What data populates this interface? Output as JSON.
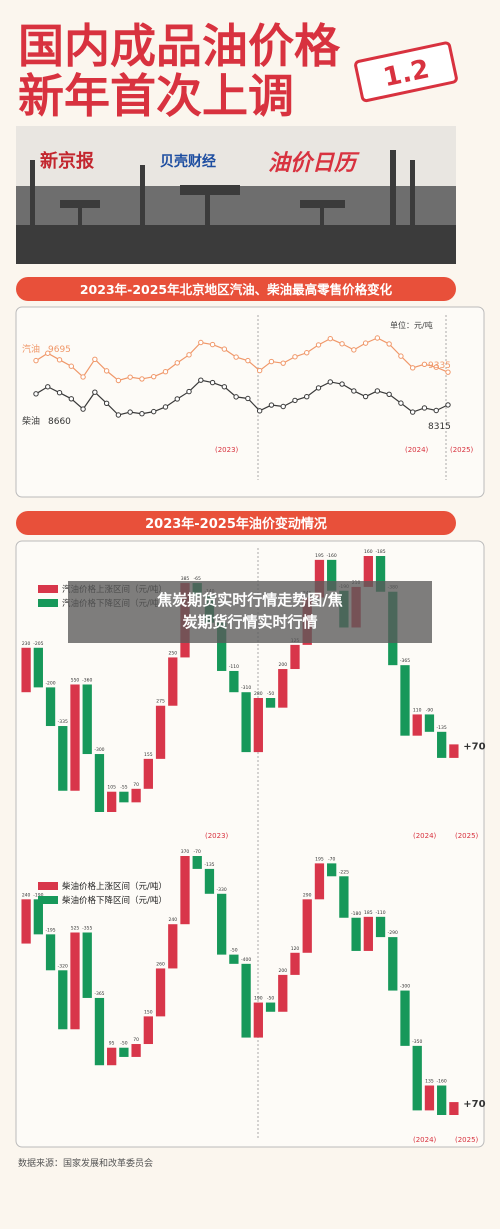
{
  "header": {
    "title_line1": "国内成品油价格",
    "title_line2": "新年首次上调",
    "badge": "1.2"
  },
  "banner": {
    "logo1": "新京报",
    "logo2": "贝壳财经",
    "calendar": "油价日历"
  },
  "section2_heading": "2023年-2025年油价变动情况",
  "overlay": "焦炭期货实时行情走势图/焦炭期货行情实时行情",
  "source": "数据来源：国家发展和改革委员会",
  "year_labels": [
    "(2023)",
    "(2024)",
    "(2025)"
  ],
  "chart_data": [
    {
      "type": "line",
      "title": "2023年-2025年北京地区汽油、柴油最高零售价格变化",
      "unit": "单位：元/吨",
      "series": [
        {
          "name": "汽油",
          "color": "#f0986a",
          "values": [
            9695,
            9925,
            9720,
            9520,
            9185,
            9735,
            9375,
            9075,
            9180,
            9125,
            9195,
            9350,
            9625,
            9875,
            10260,
            10195,
            10055,
            9805,
            9695,
            9385,
            9665,
            9615,
            9815,
            9940,
            10185,
            10380,
            10220,
            10030,
            10240,
            10400,
            10215,
            9835,
            9470,
            9580,
            9490,
            9335
          ]
        },
        {
          "name": "柴油",
          "color": "#3a3a3a",
          "values": [
            8660,
            8880,
            8695,
            8505,
            8185,
            8710,
            8365,
            8000,
            8090,
            8040,
            8105,
            8250,
            8500,
            8730,
            9085,
            9010,
            8880,
            8565,
            8515,
            8130,
            8310,
            8265,
            8455,
            8570,
            8845,
            9030,
            8965,
            8750,
            8575,
            8750,
            8645,
            8370,
            8090,
            8220,
            8140,
            8315
          ]
        }
      ]
    },
    {
      "type": "waterfall",
      "up_label": "汽油价格上涨区间（元/吨）",
      "down_label": "汽油价格下降区间（元/吨）",
      "up_color": "#d8364a",
      "down_color": "#17985a",
      "values": [
        230,
        -205,
        -200,
        -335,
        550,
        -360,
        -300,
        105,
        -55,
        70,
        155,
        275,
        250,
        385,
        -65,
        -140,
        -250,
        -110,
        -310,
        280,
        -50,
        200,
        125,
        245,
        195,
        -160,
        -190,
        210,
        160,
        -185,
        -380,
        -365,
        110,
        -90,
        -135,
        70
      ],
      "value_labels": [
        "230",
        "-205",
        "-200",
        "-335",
        "550",
        "-360",
        "-300",
        "105",
        "-55",
        "70",
        "155",
        "275",
        "250",
        "385",
        "-65",
        "-140",
        "-250",
        "-110",
        "-310",
        "280",
        "-50",
        "200",
        "125",
        "245",
        "195",
        "-160",
        "-190",
        "210",
        "160",
        "-185",
        "-380",
        "-365",
        "110",
        "-90",
        "-135",
        "+70"
      ]
    },
    {
      "type": "waterfall",
      "up_label": "柴油价格上涨区间（元/吨）",
      "down_label": "柴油价格下降区间（元/吨）",
      "up_color": "#d8364a",
      "down_color": "#17985a",
      "values": [
        240,
        -190,
        -195,
        -320,
        525,
        -355,
        -365,
        95,
        -50,
        70,
        150,
        260,
        240,
        370,
        -70,
        -135,
        -330,
        -50,
        -400,
        190,
        -50,
        200,
        120,
        290,
        195,
        -70,
        -225,
        -180,
        185,
        -110,
        -290,
        -300,
        -350,
        135,
        -160,
        70
      ],
      "value_labels": [
        "240",
        "-190",
        "-195",
        "-320",
        "525",
        "-355",
        "-365",
        "95",
        "-50",
        "70",
        "150",
        "260",
        "240",
        "370",
        "-70",
        "-135",
        "-330",
        "-50",
        "-400",
        "190",
        "-50",
        "200",
        "120",
        "290",
        "195",
        "-70",
        "-225",
        "-180",
        "185",
        "-110",
        "-290",
        "-300",
        "-350",
        "135",
        "-160",
        "+70"
      ]
    }
  ]
}
